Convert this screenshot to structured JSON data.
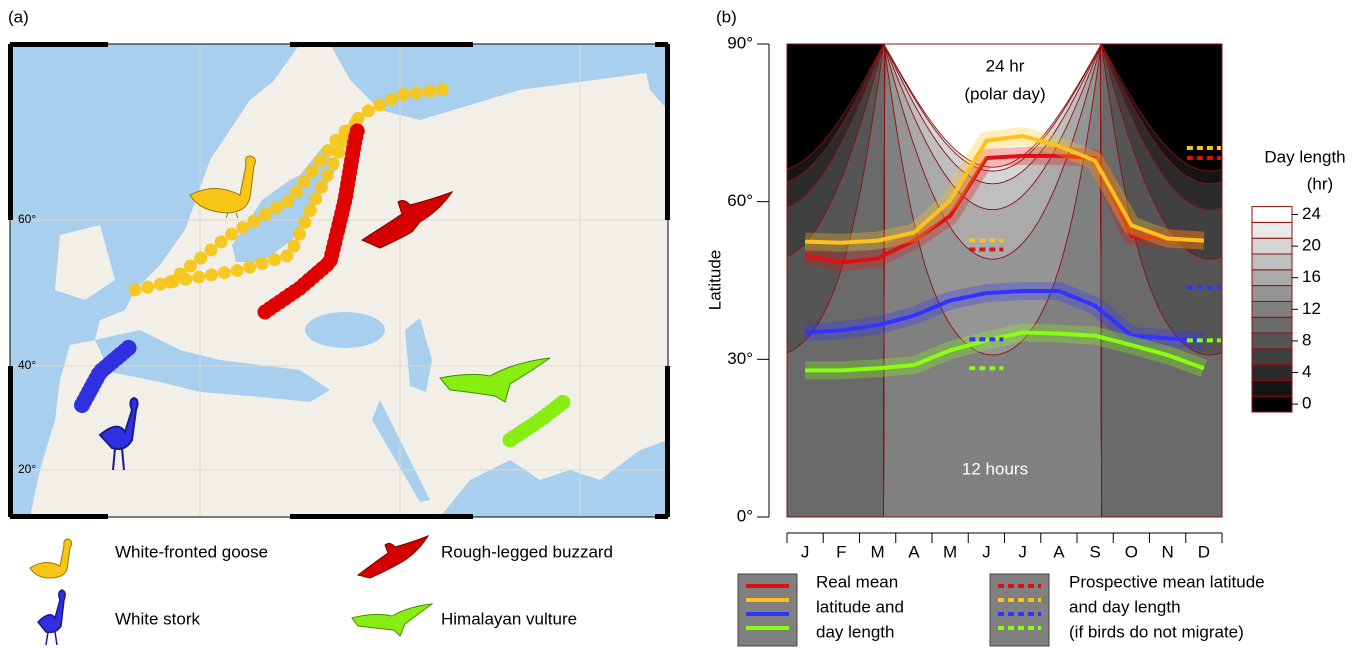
{
  "panel_a": {
    "label": "(a)",
    "map_lat_labels": [
      "60°",
      "40°",
      "20°"
    ],
    "legend": [
      "White-fronted goose",
      "Rough-legged buzzard",
      "White stork",
      "Himalayan vulture"
    ]
  },
  "chart_data": {
    "type": "line",
    "panel_label": "(b)",
    "y_label": "Latitude",
    "categories": [
      "J",
      "F",
      "M",
      "A",
      "M",
      "J",
      "J",
      "A",
      "S",
      "O",
      "N",
      "D"
    ],
    "ylim": [
      0,
      90
    ],
    "yticks": [
      {
        "value": 0,
        "label": "0°"
      },
      {
        "value": 30,
        "label": "30°"
      },
      {
        "value": 60,
        "label": "60°"
      },
      {
        "value": 90,
        "label": "90°"
      }
    ],
    "series": [
      {
        "color": "#dd1111",
        "values": [
          49.8,
          48.4,
          49.2,
          52.6,
          57.3,
          68.3,
          68.7,
          68.7,
          68.3,
          53.5,
          53.0,
          52.6
        ]
      },
      {
        "color": "#ffc21a",
        "values": [
          52.4,
          52.2,
          52.6,
          54.1,
          60.2,
          71.6,
          72.5,
          70.6,
          67.8,
          55.5,
          53.0,
          52.6
        ]
      },
      {
        "color": "#3333ff",
        "values": [
          35.1,
          35.5,
          36.5,
          38.3,
          41.2,
          42.6,
          43.0,
          43.0,
          40.2,
          34.5,
          34.0,
          33.6
        ]
      },
      {
        "color": "#88ff11",
        "values": [
          27.9,
          27.9,
          28.3,
          28.9,
          31.7,
          33.6,
          35.1,
          34.9,
          34.5,
          32.7,
          30.8,
          28.3
        ]
      }
    ],
    "prospective_series": [
      {
        "color": "#dd1111",
        "values": [
          null,
          null,
          null,
          null,
          null,
          50.9,
          null,
          null,
          null,
          null,
          null,
          68.3
        ]
      },
      {
        "color": "#ffc21a",
        "values": [
          null,
          null,
          null,
          null,
          null,
          52.6,
          null,
          null,
          null,
          null,
          null,
          70.2
        ]
      },
      {
        "color": "#3333ff",
        "values": [
          null,
          null,
          null,
          null,
          null,
          33.8,
          null,
          null,
          null,
          null,
          null,
          43.7
        ]
      },
      {
        "color": "#88ff11",
        "values": [
          null,
          null,
          null,
          null,
          null,
          28.3,
          null,
          null,
          null,
          null,
          null,
          33.6
        ]
      }
    ],
    "annotations": {
      "polar_day": [
        "24 hr",
        "(polar day)"
      ],
      "equator": "12 hours"
    },
    "legend": {
      "real": [
        "Real mean",
        "latitude and",
        "day length"
      ],
      "prospective": [
        "Prospective mean latitude",
        "and day length",
        "(if birds do not migrate)"
      ]
    },
    "colorbar": {
      "title": [
        "Day length",
        "(hr)"
      ],
      "lim": [
        0,
        24
      ],
      "ticks": [
        0,
        4,
        8,
        12,
        16,
        20,
        24
      ]
    }
  }
}
